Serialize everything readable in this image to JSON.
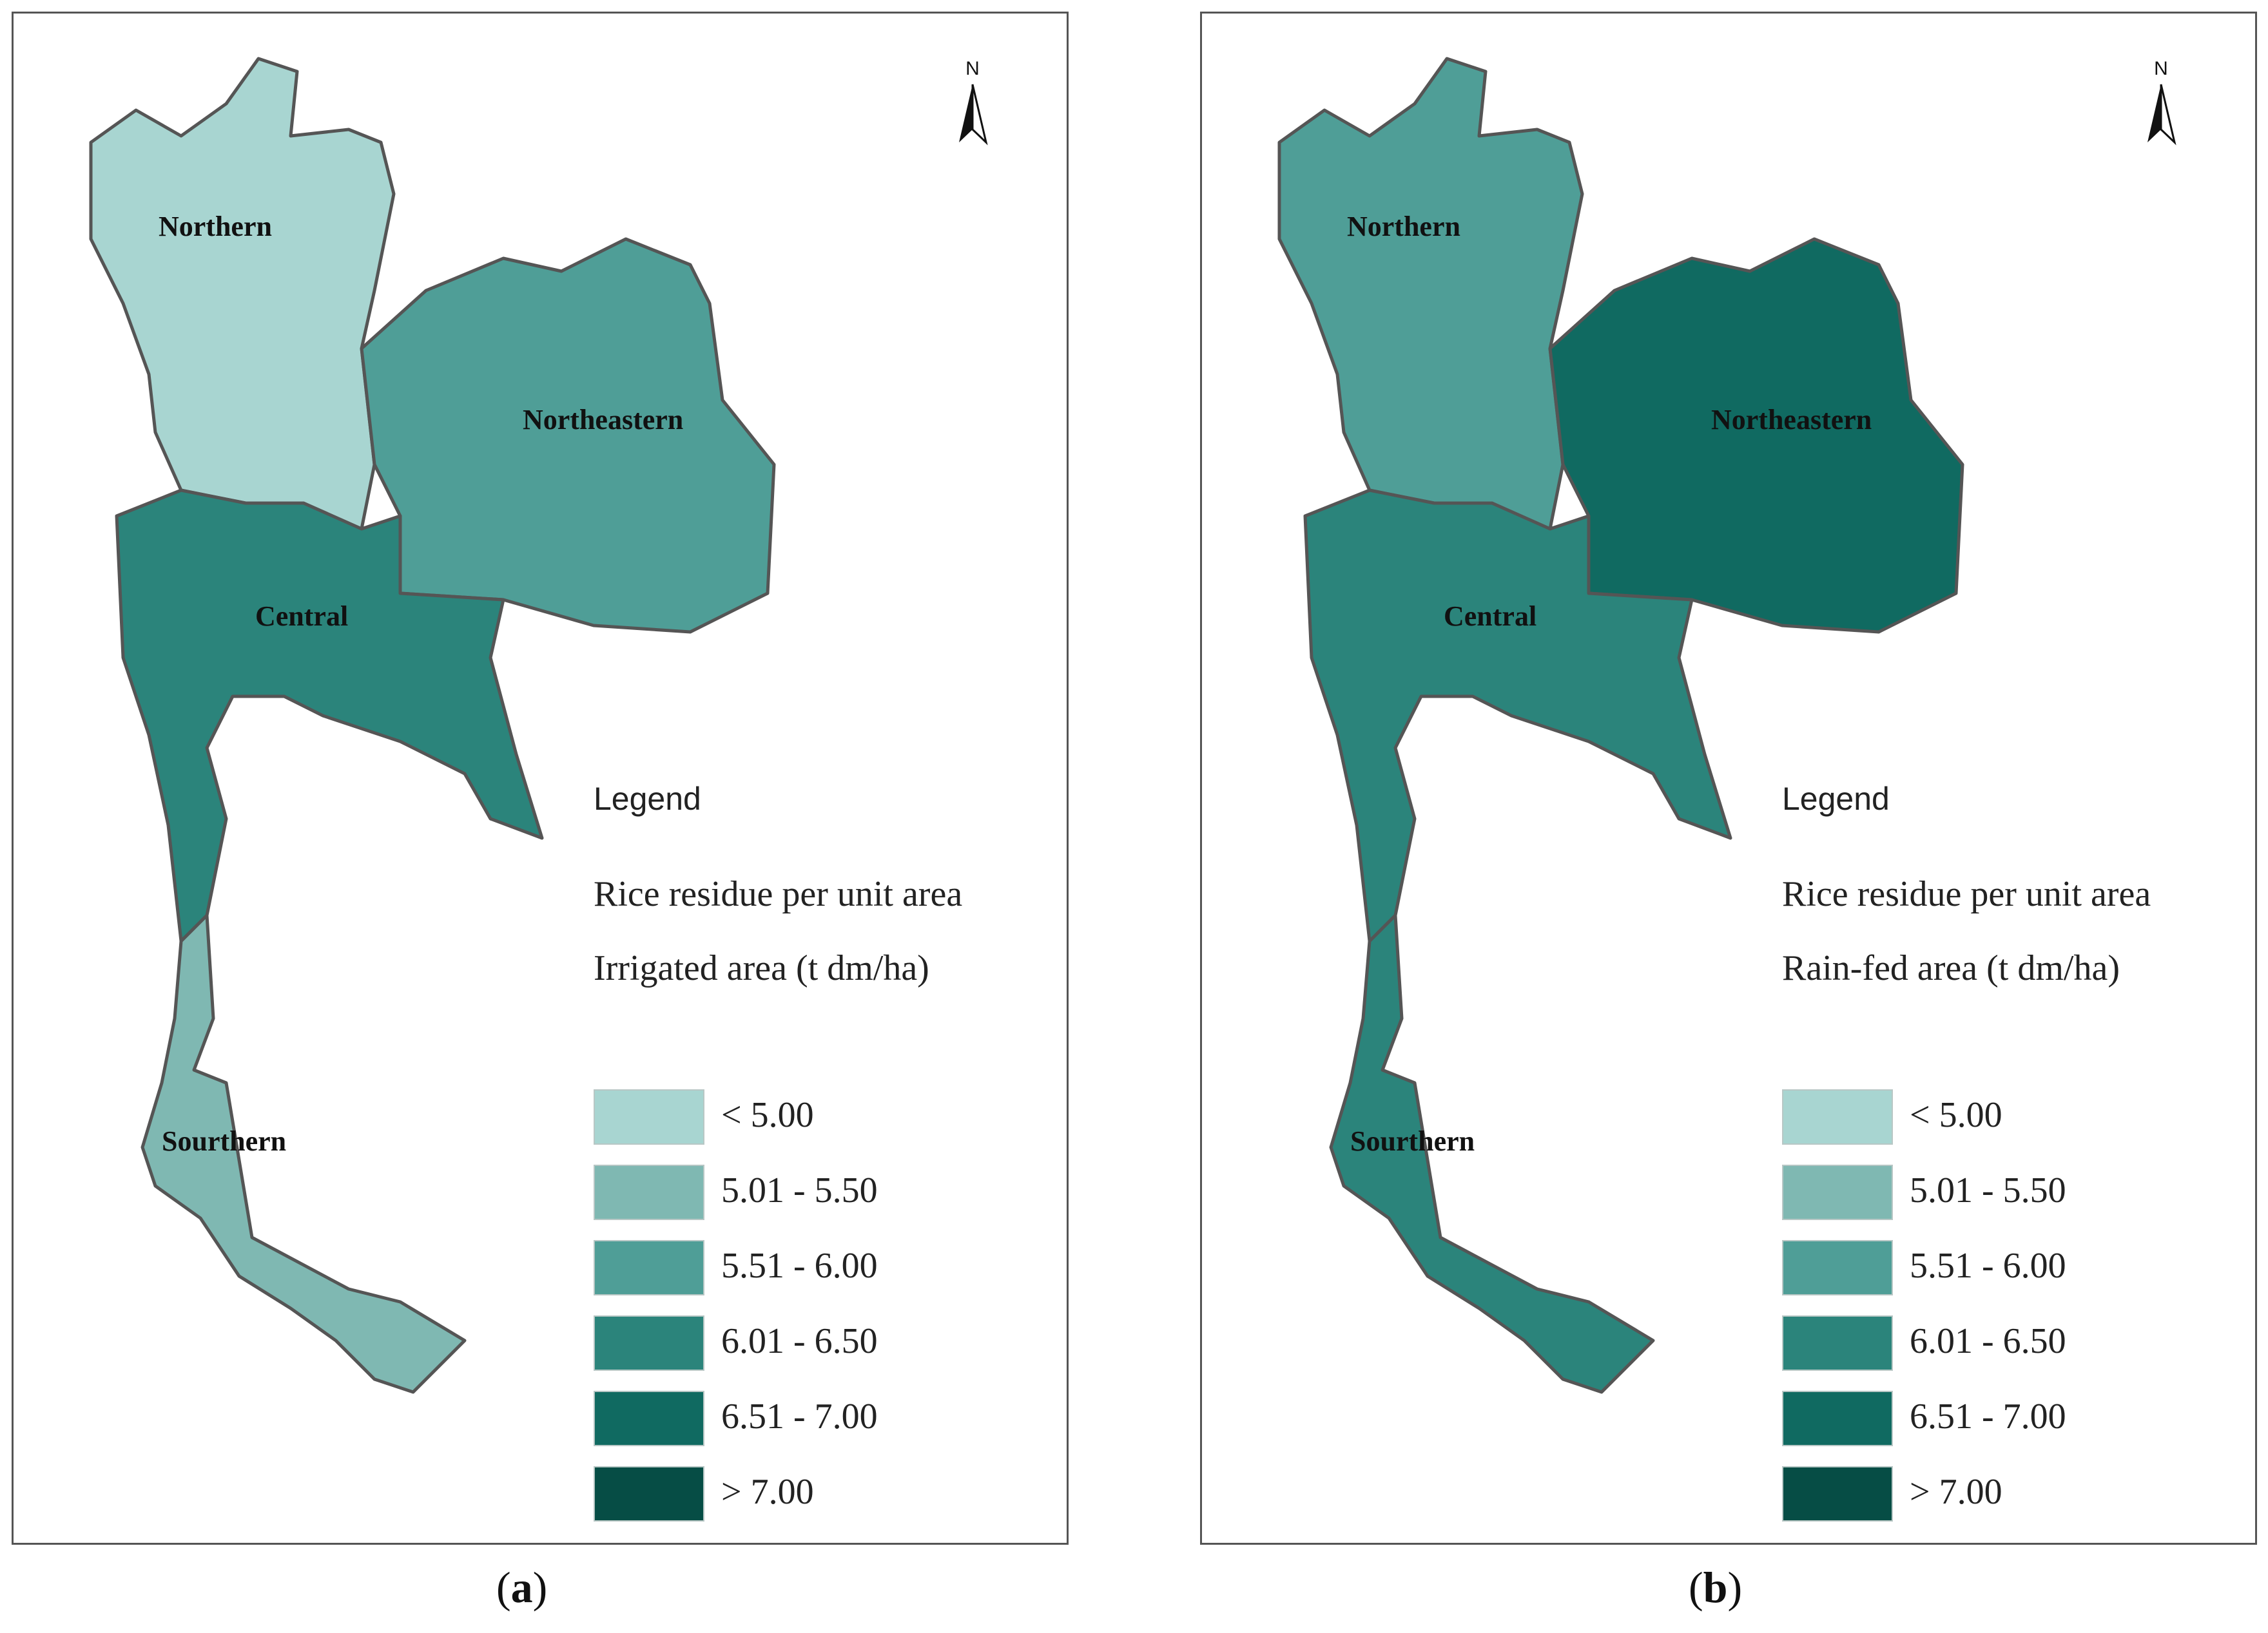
{
  "panels": [
    {
      "id": "a",
      "north_label": "N",
      "regions": {
        "northern": "Northern",
        "northeastern": "Northeastern",
        "central": "Central",
        "southern": "Sourthern"
      },
      "region_classes": {
        "northern": "< 5.00",
        "northeastern": "5.51 - 6.00",
        "central": "6.01 - 6.50",
        "southern": "5.01 - 5.50"
      },
      "legend_heading": "Legend",
      "legend_title_line1": "Rice residue per unit area",
      "legend_title_line2": "Irrigated area (t dm/ha)",
      "caption_letter": "a"
    },
    {
      "id": "b",
      "north_label": "N",
      "regions": {
        "northern": "Northern",
        "northeastern": "Northeastern",
        "central": "Central",
        "southern": "Sourthern"
      },
      "region_classes": {
        "northern": "5.51 - 6.00",
        "northeastern": "6.51 - 7.00",
        "central": "6.01 - 6.50",
        "southern": "6.01 - 6.50"
      },
      "legend_heading": "Legend",
      "legend_title_line1": "Rice residue per unit area",
      "legend_title_line2": "Rain-fed area (t dm/ha)",
      "caption_letter": "b"
    }
  ],
  "legend_classes": [
    {
      "label": "< 5.00",
      "color": "#a8d5d1"
    },
    {
      "label": "5.01 - 5.50",
      "color": "#7fb8b2"
    },
    {
      "label": "5.51 - 6.00",
      "color": "#4f9e97"
    },
    {
      "label": "6.01 - 6.50",
      "color": "#2b847b"
    },
    {
      "label": "6.51 - 7.00",
      "color": "#106a61"
    },
    {
      "label": "> 7.00",
      "color": "#064d45"
    }
  ],
  "colors": {
    "boundary": "#555555",
    "no_data": "#ffffff"
  }
}
